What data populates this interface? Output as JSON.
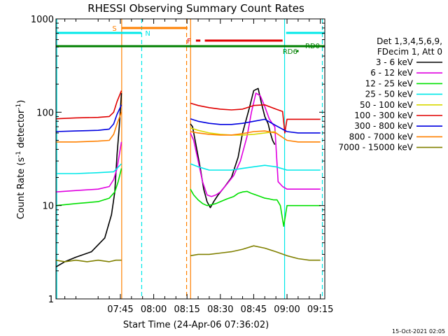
{
  "chart_data": {
    "type": "line",
    "title": "RHESSI Observing Summary Count Rates",
    "xlabel": "Start Time (24-Apr-06 07:36:02)",
    "ylabel": "Count Rate (s",
    "ylabel_sup": "-1",
    "ylabel_tail": " detector",
    "ylabel_tail_sup": "-1",
    "ylabel_close": ")",
    "yscale": "log",
    "xlim_min": [
      436.03,
      557.0
    ],
    "ylim": [
      1,
      1000
    ],
    "x_ticks": [
      {
        "m": 465,
        "label": "07:45"
      },
      {
        "m": 480,
        "label": "08:00"
      },
      {
        "m": 495,
        "label": "08:15"
      },
      {
        "m": 510,
        "label": "08:30"
      },
      {
        "m": 525,
        "label": "08:45"
      },
      {
        "m": 540,
        "label": "09:00"
      },
      {
        "m": 555,
        "label": "09:15"
      }
    ],
    "y_ticks": [
      {
        "v": 1,
        "label": "1"
      },
      {
        "v": 10,
        "label": "10"
      },
      {
        "v": 100,
        "label": "100"
      },
      {
        "v": 1000,
        "label": "1000"
      }
    ],
    "legend_header": [
      "Det 1,3,4,5,6,9,",
      "FDecim 1, Att 0"
    ],
    "legend_position": "right",
    "timestamp": "15-Oct-2021 02:05",
    "series": [
      {
        "name": "3 - 6 keV",
        "color": "#000000",
        "segments": [
          {
            "x": [
              436.0,
              440,
              445,
              452,
              458,
              461,
              462.5,
              463.5,
              464.5,
              465.5
            ],
            "y": [
              2.2,
              2.5,
              2.8,
              3.2,
              4.5,
              8,
              14,
              35,
              70,
              160
            ]
          },
          {
            "x": [
              496.5,
              497.5,
              499,
              501,
              502.5,
              504,
              505.5,
              507,
              509,
              512,
              515,
              518,
              520,
              523,
              525,
              527,
              528.5,
              530,
              531.5,
              532.5,
              533.5,
              534.5
            ],
            "y": [
              75,
              70,
              45,
              25,
              15,
              11,
              9.5,
              11,
              13,
              16,
              20,
              33,
              60,
              110,
              170,
              180,
              125,
              90,
              75,
              60,
              50,
              45
            ]
          }
        ]
      },
      {
        "name": "6 - 12 keV",
        "color": "#e000e0",
        "segments": [
          {
            "x": [
              436.0,
              445,
              455,
              460,
              462,
              463.5,
              465.5
            ],
            "y": [
              14,
              14.5,
              15,
              16,
              19,
              25,
              48
            ]
          },
          {
            "x": [
              496.5,
              498,
              500,
              502,
              504,
              506,
              508,
              510,
              513,
              516,
              519,
              522,
              524,
              526,
              528,
              530,
              532,
              533.5,
              534.5,
              536,
              538,
              540,
              542,
              545,
              548,
              551,
              555
            ],
            "y": [
              60,
              50,
              30,
              18,
              13,
              12.5,
              13,
              14,
              17,
              21,
              30,
              55,
              100,
              160,
              150,
              115,
              85,
              75,
              70,
              18,
              16,
              15,
              15,
              15,
              15,
              15,
              15
            ]
          }
        ]
      },
      {
        "name": "12 - 25 keV",
        "color": "#00e000",
        "segments": [
          {
            "x": [
              436.0,
              445,
              455,
              460,
              462.5,
              464,
              465.5
            ],
            "y": [
              10,
              10.5,
              11,
              12,
              14,
              18,
              25
            ]
          },
          {
            "x": [
              496.5,
              498,
              500,
              502,
              504,
              506,
              508,
              510,
              513,
              516,
              518,
              520,
              522,
              524,
              526,
              528,
              530,
              532,
              534,
              535.5,
              537,
              538.5,
              540,
              543,
              546,
              549,
              552,
              555
            ],
            "y": [
              15,
              13,
              11.5,
              10.5,
              10,
              10.2,
              10.5,
              11,
              11.8,
              12.5,
              13.5,
              14,
              14.2,
              13.5,
              13,
              12.5,
              12,
              11.8,
              11.5,
              11.5,
              10,
              6,
              10,
              10,
              10,
              10,
              10,
              10
            ]
          }
        ]
      },
      {
        "name": "25 - 50 keV",
        "color": "#00e8e8",
        "segments": [
          {
            "x": [
              436.0,
              445,
              455,
              462,
              463.5,
              465.5
            ],
            "y": [
              22,
              22,
              22.5,
              23,
              25,
              28
            ]
          },
          {
            "x": [
              496.5,
              500,
              505,
              510,
              515,
              520,
              525,
              530,
              535,
              540,
              545,
              550,
              555
            ],
            "y": [
              28,
              26,
              24,
              24,
              24,
              25,
              26,
              27,
              26,
              24,
              24,
              24,
              24
            ]
          }
        ]
      },
      {
        "name": "50 - 100 keV",
        "color": "#d8d800",
        "segments": [
          {
            "x": [
              496.5,
              500,
              505,
              510,
              515,
              520,
              525,
              530,
              535
            ],
            "y": [
              68,
              64,
              60,
              58,
              57,
              57,
              58,
              60,
              62
            ]
          }
        ]
      },
      {
        "name": "100 - 300 keV",
        "color": "#e00000",
        "segments": [
          {
            "x": [
              436.0,
              445,
              455,
              460,
              462,
              463.5,
              465.5
            ],
            "y": [
              85,
              87,
              88,
              90,
              100,
              130,
              170
            ]
          },
          {
            "x": [
              496.5,
              500,
              505,
              510,
              515,
              520,
              525,
              530,
              535,
              538,
              539,
              540,
              545,
              550,
              555
            ],
            "y": [
              125,
              118,
              112,
              108,
              106,
              108,
              118,
              120,
              108,
              102,
              60,
              84,
              84,
              84,
              84
            ]
          }
        ]
      },
      {
        "name": "300 - 800 keV",
        "color": "#0000e0",
        "segments": [
          {
            "x": [
              436.0,
              445,
              455,
              460,
              462,
              463.5,
              465.5
            ],
            "y": [
              62,
              63,
              64,
              66,
              75,
              95,
              120
            ]
          },
          {
            "x": [
              496.5,
              500,
              505,
              510,
              515,
              520,
              525,
              530,
              535,
              540,
              545,
              550,
              555
            ],
            "y": [
              85,
              80,
              76,
              74,
              74,
              76,
              80,
              84,
              72,
              62,
              60,
              60,
              60
            ]
          }
        ]
      },
      {
        "name": "800 - 7000 keV",
        "color": "#ff8000",
        "segments": [
          {
            "x": [
              436.0,
              445,
              455,
              460,
              462,
              463.5,
              465.5
            ],
            "y": [
              48,
              48,
              49,
              50,
              58,
              75,
              100
            ]
          },
          {
            "x": [
              496.5,
              500,
              505,
              510,
              515,
              520,
              525,
              530,
              535,
              540,
              545,
              550,
              555
            ],
            "y": [
              62,
              60,
              58,
              57,
              57,
              59,
              62,
              63,
              60,
              50,
              48,
              48,
              48
            ]
          }
        ]
      },
      {
        "name": "7000 - 15000 keV",
        "color": "#808000",
        "segments": [
          {
            "x": [
              436.0,
              440,
              445,
              450,
              455,
              460,
              463,
              465.5
            ],
            "y": [
              2.6,
              2.5,
              2.6,
              2.5,
              2.6,
              2.5,
              2.6,
              2.6
            ]
          },
          {
            "x": [
              496.5,
              500,
              505,
              510,
              515,
              520,
              525,
              530,
              535,
              540,
              545,
              550,
              555
            ],
            "y": [
              2.9,
              3.0,
              3.0,
              3.1,
              3.2,
              3.4,
              3.7,
              3.5,
              3.2,
              2.9,
              2.7,
              2.6,
              2.6
            ]
          }
        ]
      }
    ],
    "state_bars": [
      {
        "label": "S",
        "color": "#ff8000",
        "level": 1,
        "segments": [
          [
            465.5,
            495.2
          ]
        ]
      },
      {
        "label": "N",
        "color": "#00e8e8",
        "level": 2,
        "segments": [
          [
            436.0,
            474.5
          ],
          [
            539.6,
            557.0
          ]
        ]
      },
      {
        "label": "F",
        "color": "#e00000",
        "level": 3,
        "segments": [
          [
            499.0,
            501.0
          ],
          [
            503.0,
            538.0
          ]
        ]
      },
      {
        "label": "RD0",
        "color": "#008000",
        "level": 4,
        "segments": [
          [
            436.0,
            557.0
          ]
        ]
      },
      {
        "label": "RD6",
        "color": "#008000",
        "level": 5,
        "segments": [
          [
            544.2,
            545.2
          ]
        ]
      }
    ],
    "vertical_markers": [
      {
        "m": 436.4,
        "color": "#00e8e8",
        "style": "solid"
      },
      {
        "m": 465.6,
        "color": "#ff8000",
        "style": "solid"
      },
      {
        "m": 474.6,
        "color": "#00e8e8",
        "style": "dashed"
      },
      {
        "m": 494.8,
        "color": "#ff8000",
        "style": "dashed"
      },
      {
        "m": 496.6,
        "color": "#ff8000",
        "style": "solid"
      },
      {
        "m": 538.9,
        "color": "#00e8e8",
        "style": "solid"
      },
      {
        "m": 555.9,
        "color": "#00e8e8",
        "style": "dashed"
      }
    ]
  }
}
